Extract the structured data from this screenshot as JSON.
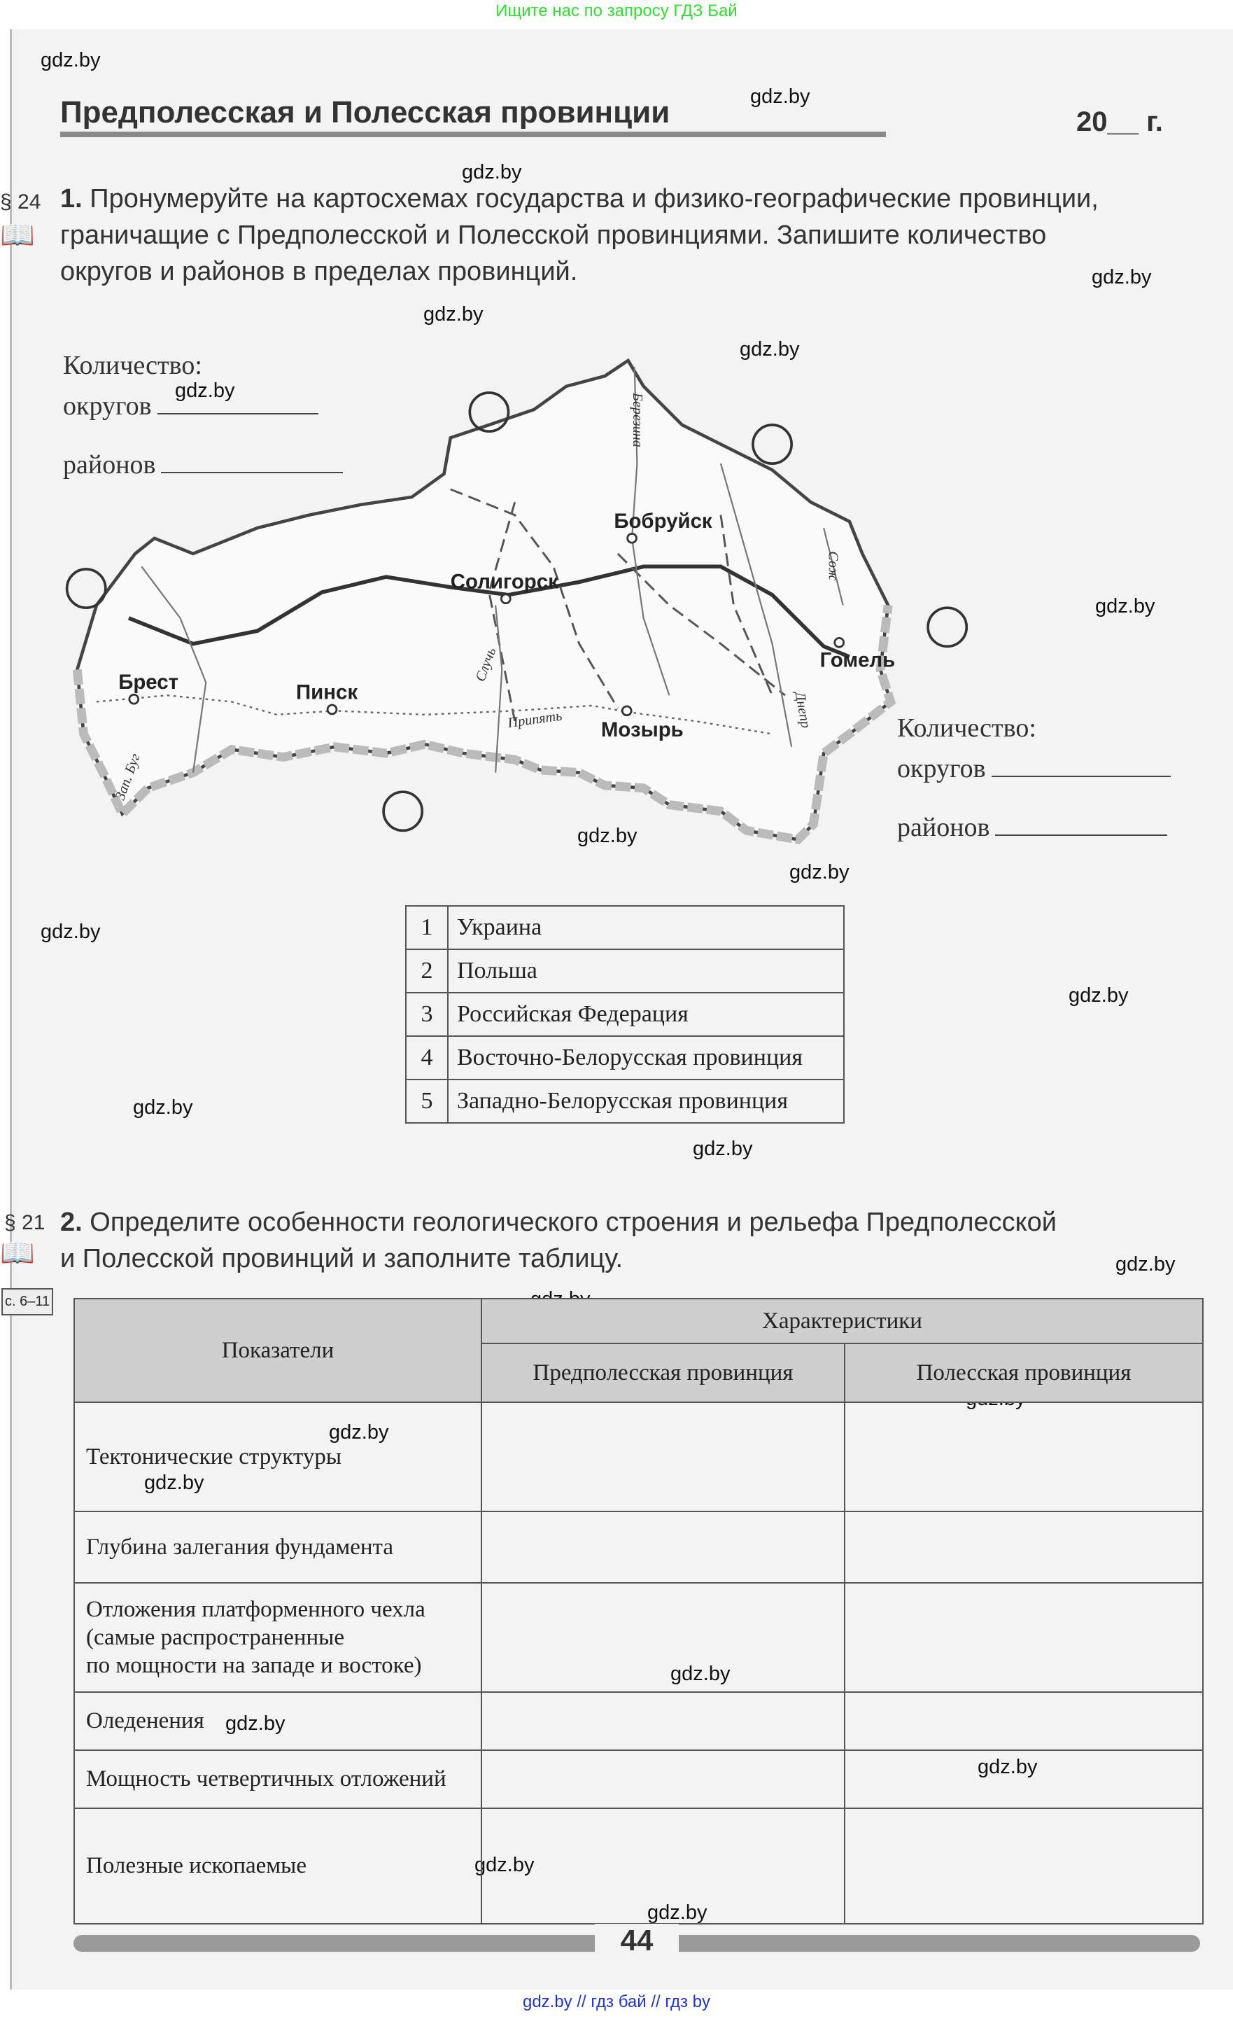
{
  "banner": "Ищите нас по запросу ГДЗ Бай",
  "watermark": "gdz.by",
  "title": "Предполесская и Полесская провинции",
  "date": "20__ г.",
  "task1": {
    "paragraph": "§ 24",
    "number": "1.",
    "text_lines": [
      "Пронумеруйте на картосхемах государства и физико-географические провинции,",
      "граничащие с Предполесской и Полесской провинциями. Запишите количество",
      "округов и районов в пределах провинций."
    ],
    "count_label": "Количество:",
    "districts_label": "округов",
    "regions_label": "районов"
  },
  "map": {
    "cities": [
      "Брест",
      "Пинск",
      "Солигорск",
      "Бобруйск",
      "Гомель",
      "Мозырь"
    ],
    "rivers": [
      "Березина",
      "Сож",
      "Случь",
      "Припять",
      "Днепр",
      "Зап. Буг"
    ]
  },
  "legend": [
    {
      "n": "1",
      "label": "Украина"
    },
    {
      "n": "2",
      "label": "Польша"
    },
    {
      "n": "3",
      "label": "Российская Федерация"
    },
    {
      "n": "4",
      "label": "Восточно-Белорусская провинция"
    },
    {
      "n": "5",
      "label": "Западно-Белорусская провинция"
    }
  ],
  "task2": {
    "paragraph": "§ 21",
    "pages": "с. 6–11",
    "number": "2.",
    "text_lines": [
      "Определите особенности геологического строения и рельефа Предполесской",
      "и Полесской провинций и заполните таблицу."
    ]
  },
  "table": {
    "col_indicators": "Показатели",
    "col_characteristics": "Характеристики",
    "col_prepolesie": "Предполесская провинция",
    "col_polesie": "Полесская провинция",
    "rows": [
      [
        "Тектонические структуры"
      ],
      [
        "Глубина залегания фундамента"
      ],
      [
        "Отложения платформенного чехла",
        "(самые распространенные",
        "по мощности на западе и востоке)"
      ],
      [
        "Оледенения"
      ],
      [
        "Мощность четвертичных отложений"
      ],
      [
        "Полезные ископаемые"
      ]
    ]
  },
  "page_number": "44",
  "footer": "gdz.by // гдз бай // гдз by"
}
